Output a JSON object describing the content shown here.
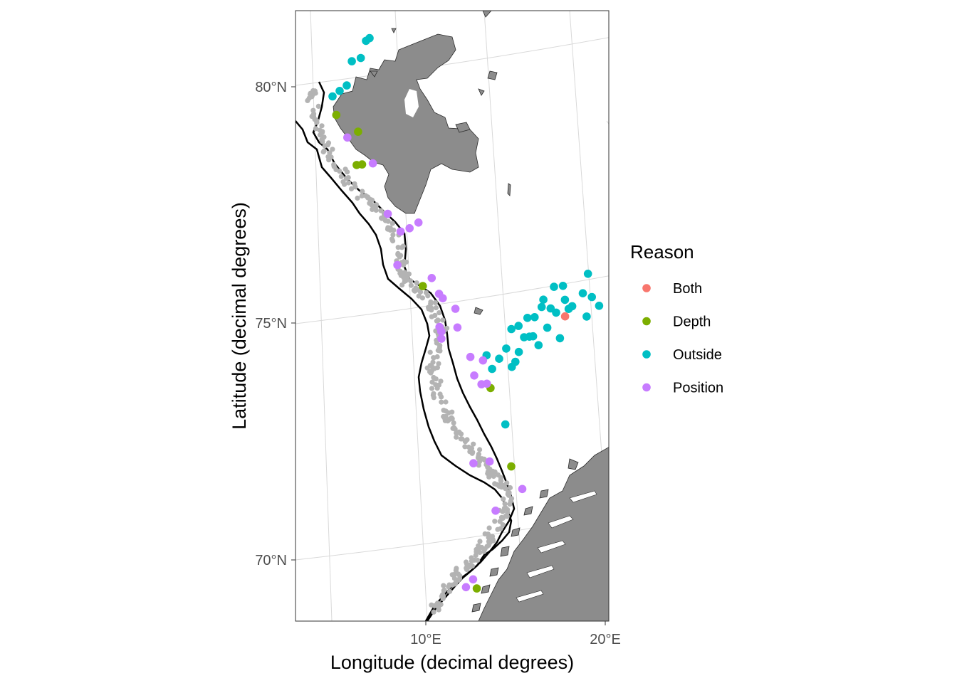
{
  "chart_data": {
    "type": "scatter",
    "xlabel": "Longitude (decimal degrees)",
    "ylabel": "Latitude (decimal degrees)",
    "x_ticks": [
      "10°E",
      "20°E"
    ],
    "y_ticks": [
      "70°N",
      "75°N",
      "80°N"
    ],
    "land_color": "#8c8c8c",
    "track_color": "#b3b3b3",
    "legend": {
      "title": "Reason",
      "placement": "right",
      "items": [
        {
          "label": "Both",
          "color": "#f8766d"
        },
        {
          "label": "Depth",
          "color": "#7cae00"
        },
        {
          "label": "Outside",
          "color": "#00bfc4"
        },
        {
          "label": "Position",
          "color": "#c77cff"
        }
      ]
    },
    "series": [
      {
        "name": "Both",
        "points": [
          [
            17.6,
            74.85
          ]
        ]
      },
      {
        "name": "Depth",
        "points": [
          [
            5.0,
            79.6
          ],
          [
            6.2,
            79.2
          ],
          [
            6.1,
            78.5
          ],
          [
            6.4,
            78.5
          ],
          [
            9.7,
            75.8
          ],
          [
            13.4,
            73.5
          ],
          [
            14.5,
            71.8
          ],
          [
            12.5,
            69.3
          ]
        ]
      },
      {
        "name": "Outside",
        "points": [
          [
            4.8,
            80.0
          ],
          [
            5.2,
            80.1
          ],
          [
            5.6,
            80.2
          ],
          [
            5.9,
            80.7
          ],
          [
            6.4,
            80.75
          ],
          [
            6.7,
            81.1
          ],
          [
            6.9,
            81.15
          ],
          [
            13.2,
            74.2
          ],
          [
            13.5,
            73.9
          ],
          [
            13.9,
            74.1
          ],
          [
            14.3,
            74.3
          ],
          [
            14.6,
            73.9
          ],
          [
            14.8,
            74.0
          ],
          [
            15.0,
            74.2
          ],
          [
            14.6,
            74.7
          ],
          [
            15.0,
            74.75
          ],
          [
            15.3,
            74.5
          ],
          [
            15.5,
            74.9
          ],
          [
            15.6,
            74.5
          ],
          [
            15.8,
            74.5
          ],
          [
            15.9,
            74.9
          ],
          [
            16.1,
            74.3
          ],
          [
            16.3,
            75.1
          ],
          [
            16.4,
            75.25
          ],
          [
            16.6,
            74.65
          ],
          [
            16.8,
            75.05
          ],
          [
            17.0,
            75.5
          ],
          [
            17.1,
            74.95
          ],
          [
            17.3,
            74.4
          ],
          [
            17.5,
            75.5
          ],
          [
            17.6,
            75.2
          ],
          [
            17.8,
            75.0
          ],
          [
            18.0,
            75.05
          ],
          [
            18.6,
            75.3
          ],
          [
            18.8,
            74.8
          ],
          [
            18.9,
            75.7
          ],
          [
            19.1,
            75.2
          ],
          [
            19.5,
            75.0
          ],
          [
            14.2,
            72.7
          ]
        ]
      },
      {
        "name": "Position",
        "points": [
          [
            5.6,
            79.1
          ],
          [
            7.0,
            78.5
          ],
          [
            7.8,
            77.4
          ],
          [
            8.5,
            77.0
          ],
          [
            9.0,
            77.05
          ],
          [
            9.5,
            77.15
          ],
          [
            8.3,
            76.3
          ],
          [
            10.2,
            75.95
          ],
          [
            10.6,
            75.6
          ],
          [
            10.8,
            75.5
          ],
          [
            11.5,
            75.25
          ],
          [
            10.6,
            74.9
          ],
          [
            10.7,
            74.8
          ],
          [
            10.7,
            74.65
          ],
          [
            11.6,
            74.85
          ],
          [
            12.3,
            74.2
          ],
          [
            12.5,
            73.8
          ],
          [
            13.0,
            74.1
          ],
          [
            12.9,
            73.6
          ],
          [
            13.2,
            73.6
          ],
          [
            12.4,
            71.95
          ],
          [
            13.3,
            71.95
          ],
          [
            15.1,
            71.3
          ],
          [
            13.6,
            70.9
          ],
          [
            11.9,
            69.35
          ],
          [
            12.3,
            69.5
          ]
        ]
      }
    ]
  }
}
